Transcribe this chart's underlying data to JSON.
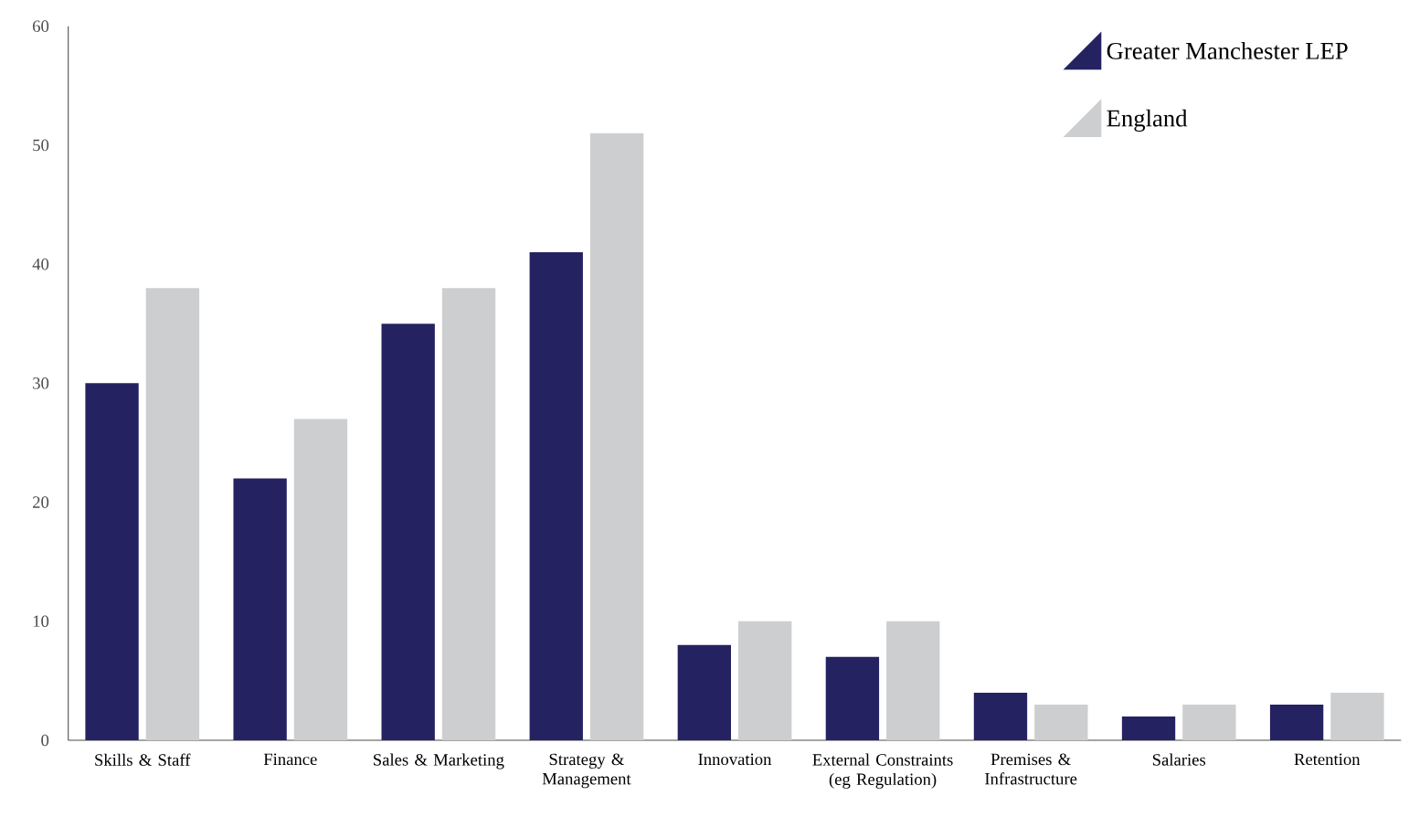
{
  "chart_data": {
    "type": "bar",
    "categories": [
      "Skills & Staff",
      "Finance",
      "Sales & Marketing",
      "Strategy & Management",
      "Innovation",
      "External Constraints (eg Regulation)",
      "Premises & Infrastructure",
      "Salaries",
      "Retention"
    ],
    "series": [
      {
        "name": "Greater Manchester LEP",
        "color": "#252262",
        "values": [
          30,
          22,
          35,
          41,
          8,
          7,
          4,
          2,
          3
        ]
      },
      {
        "name": "England",
        "color": "#cdced0",
        "values": [
          38,
          27,
          38,
          51,
          10,
          10,
          3,
          3,
          4
        ]
      }
    ],
    "ylim": [
      0,
      60
    ],
    "yticks": [
      0,
      10,
      20,
      30,
      40,
      50,
      60
    ],
    "grid": false,
    "legend": "top right"
  }
}
